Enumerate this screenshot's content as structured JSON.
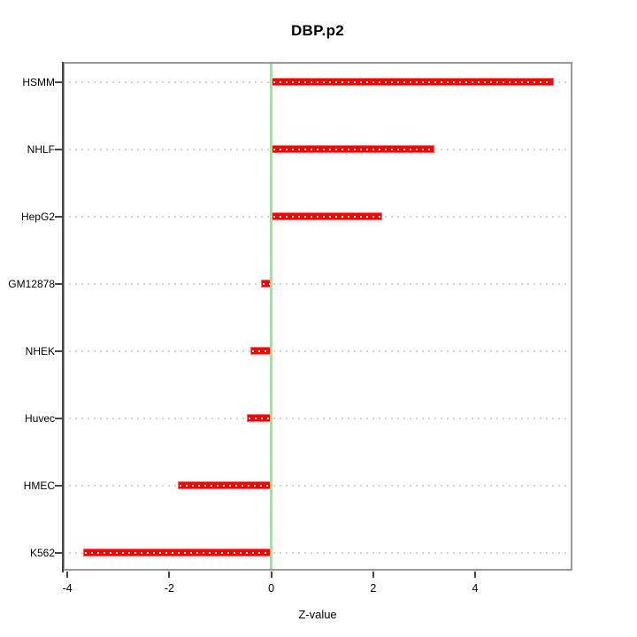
{
  "chart_data": {
    "type": "bar",
    "orientation": "horizontal",
    "title": "DBP.p2",
    "xlabel": "Z-value",
    "ylabel": "",
    "categories": [
      "HSMM",
      "NHLF",
      "HepG2",
      "GM12878",
      "NHEK",
      "Huvec",
      "HMEC",
      "K562"
    ],
    "values": [
      5.55,
      3.2,
      2.17,
      -0.2,
      -0.41,
      -0.48,
      -1.83,
      -3.7
    ],
    "x_ticks": [
      -4,
      -2,
      0,
      2,
      4
    ],
    "xlim": [
      -4.09,
      5.91
    ],
    "zero_reference_line": 0,
    "grid": "horizontal dotted line per category",
    "legend": "none",
    "colors": {
      "bar": "#fb0000",
      "bar_border": "#ff6a6a",
      "bar_dots": "#ffffff",
      "zero_line": "#90ee90",
      "grid": "#d2d2d2",
      "box": "#999999",
      "axis": "#454545",
      "text": "#000000",
      "background": "#ffffff"
    }
  }
}
